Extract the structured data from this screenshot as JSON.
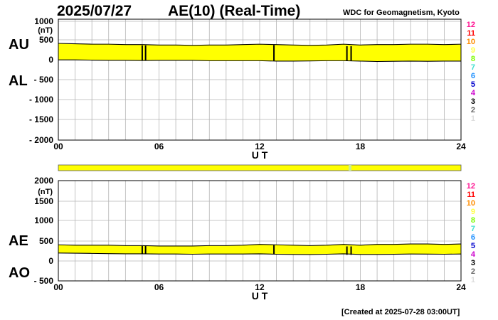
{
  "header": {
    "date": "2025/07/27",
    "title": "AE(10) (Real-Time)",
    "credit": "WDC for Geomagnetism, Kyoto"
  },
  "footer": {
    "created": "[Created at 2025-07-28 03:00UT]"
  },
  "colors": {
    "fill": "#ffff00",
    "trace": "#000000",
    "grid": "#b4b4b4",
    "status_ok": "#ffff00",
    "status_mark": "#ccee88"
  },
  "status_bar": {
    "marks_ut": [
      17.3
    ]
  },
  "level_legend": [
    {
      "label": "12",
      "color": "#ff1493"
    },
    {
      "label": "11",
      "color": "#ff0000"
    },
    {
      "label": "10",
      "color": "#ff8c00"
    },
    {
      "label": "9",
      "color": "#ffff44"
    },
    {
      "label": "8",
      "color": "#7cfc00"
    },
    {
      "label": "7",
      "color": "#40e0d0"
    },
    {
      "label": "6",
      "color": "#1e90ff"
    },
    {
      "label": "5",
      "color": "#0000cd"
    },
    {
      "label": "4",
      "color": "#cc00cc"
    },
    {
      "label": "3",
      "color": "#000000"
    },
    {
      "label": "2",
      "color": "#666666"
    },
    {
      "label": "1",
      "color": "#dddddd"
    }
  ],
  "chart_data": [
    {
      "type": "area",
      "series": [
        {
          "name": "AU",
          "x": [
            0,
            1,
            2,
            3,
            4,
            5,
            6,
            7,
            8,
            9,
            10,
            11,
            12,
            13,
            14,
            15,
            16,
            17,
            18,
            19,
            20,
            21,
            22,
            23,
            24
          ],
          "values": [
            400,
            390,
            380,
            380,
            370,
            370,
            360,
            360,
            350,
            360,
            360,
            370,
            380,
            370,
            360,
            350,
            360,
            380,
            360,
            370,
            370,
            380,
            380,
            370,
            380
          ]
        },
        {
          "name": "AL",
          "x": [
            0,
            1,
            2,
            3,
            4,
            5,
            6,
            7,
            8,
            9,
            10,
            11,
            12,
            13,
            14,
            15,
            16,
            17,
            18,
            19,
            20,
            21,
            22,
            23,
            24
          ],
          "values": [
            -10,
            -10,
            -15,
            -20,
            -20,
            -25,
            -20,
            -20,
            -20,
            -30,
            -30,
            -30,
            -30,
            -40,
            -40,
            -35,
            -30,
            -30,
            -40,
            -50,
            -45,
            -40,
            -45,
            -40,
            -40
          ]
        }
      ],
      "spikes": [
        {
          "x": 5.0,
          "au": 350,
          "al": -20
        },
        {
          "x": 5.2,
          "au": 350,
          "al": -20
        },
        {
          "x": 12.85,
          "au": 360,
          "al": -30
        },
        {
          "x": 17.2,
          "au": 330,
          "al": -30
        },
        {
          "x": 17.45,
          "au": 330,
          "al": -30
        }
      ],
      "xlabel": "U T",
      "xticks": [
        "00",
        "06",
        "12",
        "18",
        "24"
      ],
      "xlim": [
        0,
        24
      ],
      "ylim": [
        -2000,
        1000
      ],
      "yunit": "(nT)",
      "yticks": [
        "1000",
        "500",
        "0",
        "- 500",
        "- 1000",
        "- 1500",
        "- 2000"
      ],
      "grid": true
    },
    {
      "type": "area",
      "series": [
        {
          "name": "AE",
          "x": [
            0,
            1,
            2,
            3,
            4,
            5,
            6,
            7,
            8,
            9,
            10,
            11,
            12,
            13,
            14,
            15,
            16,
            17,
            18,
            19,
            20,
            21,
            22,
            23,
            24
          ],
          "values": [
            400,
            390,
            390,
            390,
            380,
            380,
            370,
            370,
            370,
            380,
            380,
            390,
            410,
            400,
            390,
            380,
            390,
            410,
            390,
            410,
            410,
            420,
            420,
            410,
            420
          ]
        },
        {
          "name": "AO",
          "x": [
            0,
            1,
            2,
            3,
            4,
            5,
            6,
            7,
            8,
            9,
            10,
            11,
            12,
            13,
            14,
            15,
            16,
            17,
            18,
            19,
            20,
            21,
            22,
            23,
            24
          ],
          "values": [
            195,
            190,
            185,
            180,
            175,
            175,
            170,
            170,
            165,
            170,
            170,
            170,
            175,
            165,
            160,
            158,
            165,
            175,
            160,
            160,
            163,
            170,
            168,
            165,
            170
          ]
        }
      ],
      "spikes": [
        {
          "x": 5.0,
          "ae": 370,
          "ao": 165
        },
        {
          "x": 5.2,
          "ae": 370,
          "ao": 165
        },
        {
          "x": 12.85,
          "ae": 390,
          "ao": 165
        },
        {
          "x": 17.2,
          "ae": 360,
          "ao": 150
        },
        {
          "x": 17.45,
          "ae": 360,
          "ao": 150
        }
      ],
      "xlabel": "U T",
      "xticks": [
        "00",
        "06",
        "12",
        "18",
        "24"
      ],
      "xlim": [
        0,
        24
      ],
      "ylim": [
        -500,
        2000
      ],
      "yunit": "(nT)",
      "yticks": [
        "2000",
        "1500",
        "1000",
        "500",
        "0",
        "- 500"
      ],
      "grid": true
    }
  ]
}
